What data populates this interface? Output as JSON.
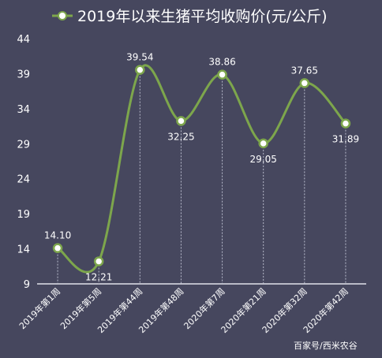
{
  "chart_data": {
    "type": "line",
    "legend_label": "2019年以来生猪平均收购价(元/公斤)",
    "categories": [
      "2019年第1周",
      "2019年第5周",
      "2019年第44周",
      "2019年第48周",
      "2020年第7周",
      "2020年第21周",
      "2020年第32周",
      "2020年第42周"
    ],
    "values": [
      14.1,
      12.21,
      39.54,
      32.25,
      38.86,
      29.05,
      37.65,
      31.89
    ],
    "value_labels": [
      "14.10",
      "12.21",
      "39.54",
      "32.25",
      "38.86",
      "29.05",
      "37.65",
      "31.89"
    ],
    "y_ticks": [
      "9",
      "14",
      "19",
      "24",
      "29",
      "34",
      "39",
      "44"
    ],
    "ylim": [
      9,
      44
    ],
    "grid": false,
    "legend_position": "top-center",
    "colors": {
      "background": "#46475e",
      "line": "#7da64c",
      "marker_fill": "#ffffff",
      "guides": "#b9bccd",
      "text": "#ffffff"
    }
  },
  "watermark": "百家号/西米农谷"
}
